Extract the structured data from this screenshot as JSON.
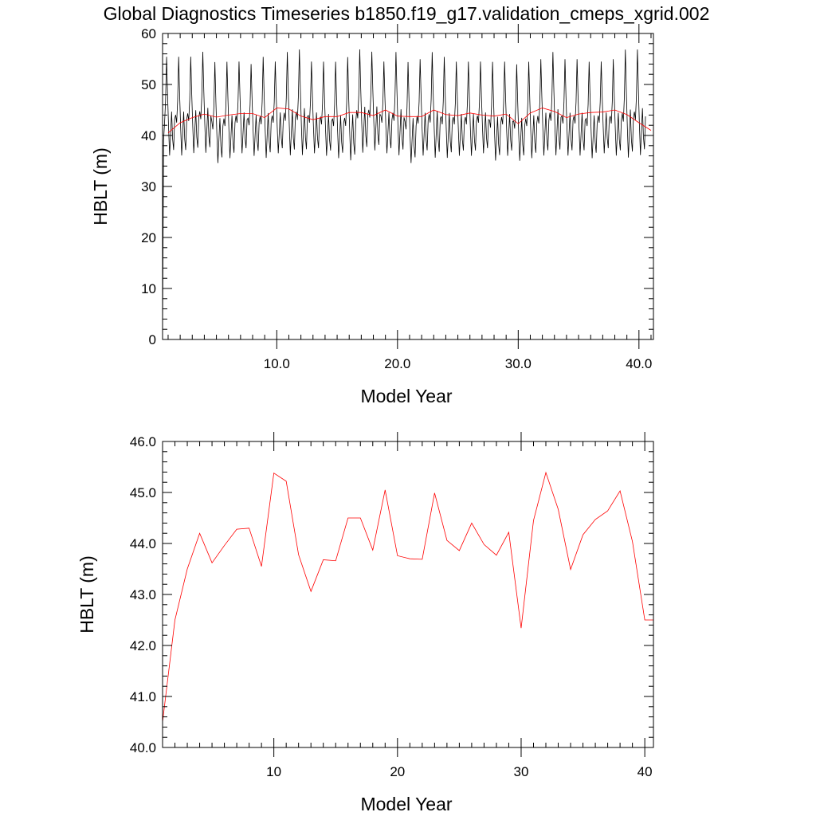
{
  "title": "Global Diagnostics Timeseries b1850.f19_g17.validation_cmeps_xgrid.002",
  "colors": {
    "monthly": "#000000",
    "annual": "#ff0000",
    "frame": "#000000",
    "background": "#ffffff"
  },
  "chart_data": [
    {
      "type": "line",
      "title": "",
      "xlabel": "Model Year",
      "ylabel": "HBLT (m)",
      "xlim": [
        0.54,
        41.2
      ],
      "ylim": [
        0,
        60
      ],
      "x_ticks": [
        10.0,
        20.0,
        30.0,
        40.0
      ],
      "x_tick_labels": [
        "10.0",
        "20.0",
        "30.0",
        "40.0"
      ],
      "y_ticks": [
        0,
        10,
        20,
        30,
        40,
        50,
        60
      ],
      "y_tick_labels": [
        "0",
        "10",
        "20",
        "30",
        "40",
        "50",
        "60"
      ],
      "grid": false,
      "legend": "none",
      "series": [
        {
          "color": "#000000",
          "x_start": 0.54,
          "x_step": 0.0833333,
          "monthly_max": [
            56.5,
            56.5,
            56.5,
            57.5,
            55.5,
            55.5,
            55.5,
            55.0,
            56.5,
            55.5,
            57.5,
            58.0,
            55.5,
            55.5,
            55.5,
            56.5,
            58.0,
            57.5,
            55.5,
            57.5,
            55.5,
            56.0,
            57.5,
            56.5,
            55.5,
            55.5,
            55.5,
            55.5,
            55.5,
            55.0,
            55.5,
            56.0,
            57.5,
            56.0,
            56.0,
            55.5,
            55.5,
            56.0,
            58.0,
            58.0
          ],
          "monthly_min": [
            35.0,
            35.0,
            35.5,
            35.5,
            33.5,
            34.5,
            35.5,
            35.0,
            34.5,
            35.5,
            35.0,
            35.0,
            35.5,
            35.0,
            34.5,
            34.0,
            35.5,
            36.0,
            35.5,
            35.0,
            33.5,
            35.0,
            34.5,
            34.5,
            35.0,
            35.0,
            35.5,
            34.0,
            35.0,
            34.0,
            34.5,
            35.0,
            35.0,
            35.0,
            35.0,
            34.5,
            35.5,
            35.0,
            34.5,
            35.0
          ],
          "first_value": 0.5
        },
        {
          "color": "#ff0000",
          "x": [
            1.0,
            2.0,
            3.0,
            4.0,
            5.0,
            6.0,
            7.0,
            8.0,
            9.0,
            10.0,
            11.0,
            12.0,
            13.0,
            14.0,
            15.0,
            16.0,
            17.0,
            18.0,
            19.0,
            20.0,
            21.0,
            22.0,
            23.0,
            24.0,
            25.0,
            26.0,
            27.0,
            28.0,
            29.0,
            30.0,
            31.0,
            32.0,
            33.0,
            34.0,
            35.0,
            36.0,
            37.0,
            38.0,
            39.0,
            40.0,
            41.0
          ],
          "values": [
            40.5,
            42.5,
            43.5,
            44.2,
            43.6,
            44.0,
            44.3,
            44.3,
            43.5,
            45.4,
            45.2,
            43.8,
            43.1,
            43.7,
            43.7,
            44.5,
            44.5,
            43.9,
            45.0,
            43.8,
            43.7,
            43.7,
            45.0,
            44.1,
            43.9,
            44.4,
            44.0,
            43.8,
            44.2,
            42.3,
            44.4,
            45.4,
            44.7,
            43.5,
            44.2,
            44.5,
            44.6,
            45.0,
            44.1,
            42.5,
            41.0
          ]
        }
      ]
    },
    {
      "type": "line",
      "title": "",
      "xlabel": "Model Year",
      "ylabel": "HBLT (m)",
      "xlim": [
        1.0,
        40.7
      ],
      "ylim": [
        40.0,
        46.0
      ],
      "x_ticks": [
        10,
        20,
        30,
        40
      ],
      "x_tick_labels": [
        "10",
        "20",
        "30",
        "40"
      ],
      "y_ticks": [
        40.0,
        41.0,
        42.0,
        43.0,
        44.0,
        45.0,
        46.0
      ],
      "y_tick_labels": [
        "40.0",
        "41.0",
        "42.0",
        "43.0",
        "44.0",
        "45.0",
        "46.0"
      ],
      "grid": false,
      "legend": "none",
      "series": [
        {
          "color": "#ff0000",
          "x": [
            1.0,
            2.0,
            3.0,
            4.0,
            5.0,
            6.0,
            7.0,
            8.0,
            9.0,
            10.0,
            11.0,
            12.0,
            13.0,
            14.0,
            15.0,
            16.0,
            17.0,
            18.0,
            19.0,
            20.0,
            21.0,
            22.0,
            23.0,
            24.0,
            25.0,
            26.0,
            27.0,
            28.0,
            29.0,
            30.0,
            31.0,
            32.0,
            33.0,
            34.0,
            35.0,
            36.0,
            37.0,
            38.0,
            39.0,
            40.0,
            40.7
          ],
          "values": [
            40.5,
            42.5,
            43.5,
            44.2,
            43.62,
            43.96,
            44.28,
            44.3,
            43.55,
            45.38,
            45.22,
            43.78,
            43.06,
            43.68,
            43.66,
            44.5,
            44.5,
            43.87,
            45.05,
            43.76,
            43.7,
            43.69,
            44.99,
            44.06,
            43.86,
            44.4,
            43.98,
            43.77,
            44.22,
            42.34,
            44.45,
            45.39,
            44.67,
            43.49,
            44.17,
            44.47,
            44.64,
            45.03,
            44.04,
            42.5,
            42.5
          ]
        }
      ]
    }
  ]
}
